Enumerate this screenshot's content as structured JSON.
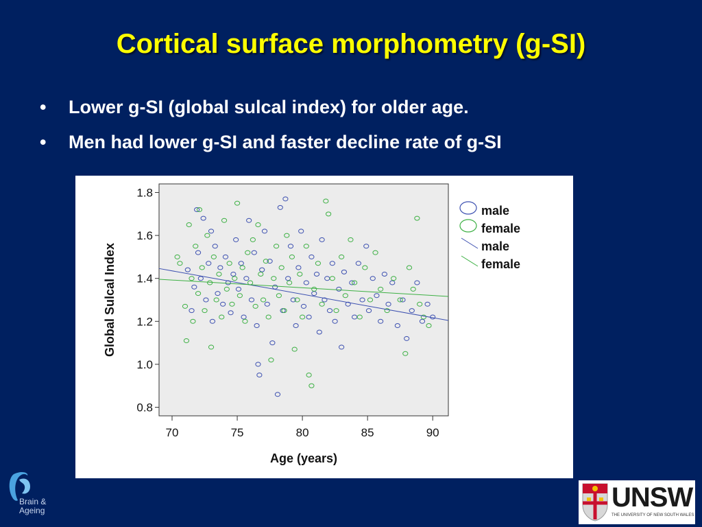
{
  "slide": {
    "title": "Cortical surface morphometry (g-SI)",
    "bullets": [
      "Lower g-SI (global sulcal index) for older age.",
      "Men had lower g-SI and faster decline rate of g-SI"
    ]
  },
  "colors": {
    "background": "#002060",
    "title": "#FFFF00",
    "male": "#3b4fb0",
    "female": "#3cb043",
    "plot_bg": "#ececec"
  },
  "logos": {
    "left": {
      "line1": "Brain &",
      "line2": "Ageing"
    },
    "right": {
      "word": "UNSW",
      "sub": "THE UNIVERSITY OF NEW SOUTH WALES"
    }
  },
  "chart_data": {
    "type": "scatter",
    "xlabel": "Age (years)",
    "ylabel": "Global Sulcal Index",
    "xlim": [
      69,
      91.2
    ],
    "ylim": [
      0.76,
      1.84
    ],
    "xticks": [
      70,
      75,
      80,
      85,
      90
    ],
    "yticks": [
      0.8,
      1.0,
      1.2,
      1.4,
      1.6,
      1.8
    ],
    "ytick_labels": [
      "0.8",
      "1.0",
      "1.2",
      "1.4",
      "1.6",
      "1.8"
    ],
    "grid": false,
    "legend_position": "right",
    "legend": [
      "male",
      "female",
      "male",
      "female"
    ],
    "series": [
      {
        "name": "male",
        "marker": "open-circle",
        "points": [
          [
            71.2,
            1.44
          ],
          [
            71.5,
            1.25
          ],
          [
            71.7,
            1.36
          ],
          [
            71.9,
            1.72
          ],
          [
            72.0,
            1.52
          ],
          [
            72.2,
            1.4
          ],
          [
            72.4,
            1.68
          ],
          [
            72.6,
            1.3
          ],
          [
            72.8,
            1.47
          ],
          [
            73.0,
            1.62
          ],
          [
            73.1,
            1.2
          ],
          [
            73.3,
            1.55
          ],
          [
            73.5,
            1.33
          ],
          [
            73.7,
            1.45
          ],
          [
            73.9,
            1.28
          ],
          [
            74.1,
            1.5
          ],
          [
            74.3,
            1.38
          ],
          [
            74.5,
            1.24
          ],
          [
            74.7,
            1.42
          ],
          [
            74.9,
            1.58
          ],
          [
            75.1,
            1.35
          ],
          [
            75.3,
            1.47
          ],
          [
            75.5,
            1.22
          ],
          [
            75.7,
            1.4
          ],
          [
            75.9,
            1.67
          ],
          [
            76.1,
            1.3
          ],
          [
            76.3,
            1.52
          ],
          [
            76.5,
            1.18
          ],
          [
            76.6,
            1.0
          ],
          [
            76.7,
            0.95
          ],
          [
            76.9,
            1.44
          ],
          [
            77.1,
            1.62
          ],
          [
            77.3,
            1.28
          ],
          [
            77.5,
            1.48
          ],
          [
            77.7,
            1.1
          ],
          [
            77.9,
            1.36
          ],
          [
            78.1,
            0.86
          ],
          [
            78.3,
            1.73
          ],
          [
            78.5,
            1.25
          ],
          [
            78.7,
            1.77
          ],
          [
            78.9,
            1.4
          ],
          [
            79.1,
            1.55
          ],
          [
            79.3,
            1.3
          ],
          [
            79.5,
            1.18
          ],
          [
            79.7,
            1.45
          ],
          [
            79.9,
            1.62
          ],
          [
            80.1,
            1.27
          ],
          [
            80.3,
            1.38
          ],
          [
            80.5,
            1.22
          ],
          [
            80.7,
            1.5
          ],
          [
            80.9,
            1.33
          ],
          [
            81.1,
            1.42
          ],
          [
            81.3,
            1.15
          ],
          [
            81.5,
            1.58
          ],
          [
            81.7,
            1.3
          ],
          [
            81.9,
            1.4
          ],
          [
            82.1,
            1.25
          ],
          [
            82.3,
            1.47
          ],
          [
            82.5,
            1.2
          ],
          [
            82.8,
            1.35
          ],
          [
            83.0,
            1.08
          ],
          [
            83.2,
            1.43
          ],
          [
            83.5,
            1.28
          ],
          [
            83.8,
            1.38
          ],
          [
            84.0,
            1.22
          ],
          [
            84.3,
            1.47
          ],
          [
            84.6,
            1.3
          ],
          [
            84.9,
            1.55
          ],
          [
            85.1,
            1.25
          ],
          [
            85.4,
            1.4
          ],
          [
            85.7,
            1.32
          ],
          [
            86.0,
            1.2
          ],
          [
            86.3,
            1.42
          ],
          [
            86.6,
            1.28
          ],
          [
            86.9,
            1.38
          ],
          [
            87.3,
            1.18
          ],
          [
            87.7,
            1.3
          ],
          [
            88.0,
            1.12
          ],
          [
            88.4,
            1.25
          ],
          [
            88.8,
            1.38
          ],
          [
            89.2,
            1.2
          ],
          [
            89.6,
            1.28
          ],
          [
            90.0,
            1.22
          ]
        ],
        "fit": [
          [
            69,
            1.446
          ],
          [
            91.2,
            1.204
          ]
        ]
      },
      {
        "name": "female",
        "marker": "open-circle",
        "points": [
          [
            70.4,
            1.5
          ],
          [
            70.6,
            1.47
          ],
          [
            71.0,
            1.27
          ],
          [
            71.1,
            1.11
          ],
          [
            71.3,
            1.65
          ],
          [
            71.5,
            1.4
          ],
          [
            71.6,
            1.2
          ],
          [
            71.8,
            1.55
          ],
          [
            72.0,
            1.33
          ],
          [
            72.1,
            1.72
          ],
          [
            72.3,
            1.45
          ],
          [
            72.5,
            1.25
          ],
          [
            72.7,
            1.6
          ],
          [
            72.9,
            1.38
          ],
          [
            73.0,
            1.08
          ],
          [
            73.2,
            1.5
          ],
          [
            73.4,
            1.3
          ],
          [
            73.6,
            1.42
          ],
          [
            73.8,
            1.22
          ],
          [
            74.0,
            1.67
          ],
          [
            74.2,
            1.35
          ],
          [
            74.4,
            1.47
          ],
          [
            74.6,
            1.28
          ],
          [
            74.8,
            1.4
          ],
          [
            75.0,
            1.75
          ],
          [
            75.2,
            1.32
          ],
          [
            75.4,
            1.45
          ],
          [
            75.6,
            1.2
          ],
          [
            75.8,
            1.52
          ],
          [
            76.0,
            1.38
          ],
          [
            76.2,
            1.58
          ],
          [
            76.4,
            1.27
          ],
          [
            76.6,
            1.65
          ],
          [
            76.8,
            1.42
          ],
          [
            77.0,
            1.3
          ],
          [
            77.2,
            1.48
          ],
          [
            77.4,
            1.22
          ],
          [
            77.6,
            1.02
          ],
          [
            77.8,
            1.4
          ],
          [
            78.0,
            1.55
          ],
          [
            78.2,
            1.32
          ],
          [
            78.4,
            1.45
          ],
          [
            78.6,
            1.25
          ],
          [
            78.8,
            1.6
          ],
          [
            79.0,
            1.38
          ],
          [
            79.2,
            1.5
          ],
          [
            79.4,
            1.07
          ],
          [
            79.6,
            1.3
          ],
          [
            79.8,
            1.42
          ],
          [
            80.0,
            1.22
          ],
          [
            80.3,
            1.55
          ],
          [
            80.5,
            0.95
          ],
          [
            80.7,
            0.9
          ],
          [
            80.9,
            1.35
          ],
          [
            81.2,
            1.47
          ],
          [
            81.5,
            1.28
          ],
          [
            81.8,
            1.76
          ],
          [
            82.0,
            1.7
          ],
          [
            82.3,
            1.4
          ],
          [
            82.6,
            1.25
          ],
          [
            83.0,
            1.5
          ],
          [
            83.3,
            1.32
          ],
          [
            83.7,
            1.58
          ],
          [
            84.0,
            1.38
          ],
          [
            84.4,
            1.22
          ],
          [
            84.8,
            1.45
          ],
          [
            85.2,
            1.3
          ],
          [
            85.6,
            1.52
          ],
          [
            86.0,
            1.35
          ],
          [
            86.5,
            1.25
          ],
          [
            87.0,
            1.4
          ],
          [
            87.5,
            1.3
          ],
          [
            87.9,
            1.05
          ],
          [
            88.2,
            1.45
          ],
          [
            88.5,
            1.35
          ],
          [
            88.8,
            1.68
          ],
          [
            89.0,
            1.28
          ],
          [
            89.3,
            1.22
          ],
          [
            89.7,
            1.18
          ]
        ],
        "fit": [
          [
            69,
            1.396
          ],
          [
            91.2,
            1.316
          ]
        ]
      }
    ]
  }
}
